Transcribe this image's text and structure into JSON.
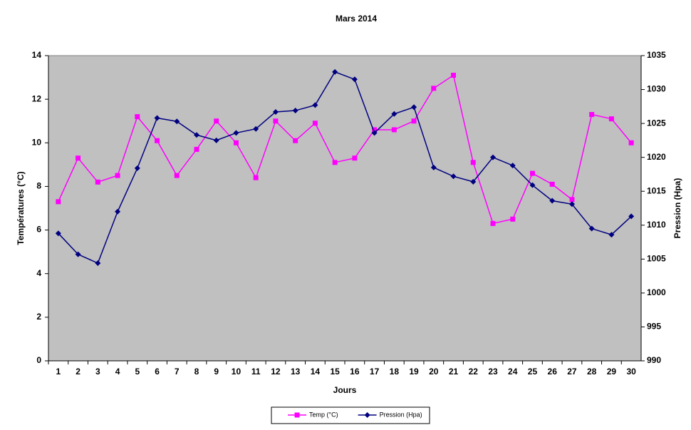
{
  "chart_data": {
    "type": "line",
    "title": "Mars 2014",
    "x_label": "Jours",
    "y_label": "Températures (°C)",
    "y2_label": "Pression (Hpa)",
    "categories": [
      "1",
      "2",
      "3",
      "4",
      "5",
      "6",
      "7",
      "8",
      "9",
      "10",
      "11",
      "12",
      "13",
      "14",
      "15",
      "16",
      "17",
      "18",
      "19",
      "20",
      "21",
      "22",
      "23",
      "24",
      "25",
      "26",
      "27",
      "28",
      "29",
      "30"
    ],
    "series": [
      {
        "name": "Temp (°C)",
        "color": "#ff00ff",
        "marker": "square",
        "values": [
          7.3,
          9.3,
          8.2,
          8.5,
          11.2,
          10.1,
          8.5,
          9.7,
          11.0,
          10.0,
          8.4,
          11.0,
          10.1,
          10.9,
          9.1,
          9.3,
          10.6,
          10.6,
          11.0,
          12.5,
          13.1,
          9.1,
          6.3,
          6.5,
          8.6,
          8.1,
          7.4,
          11.3,
          11.1,
          10.0
        ]
      },
      {
        "name": "Pression (Hpa)",
        "color": "#000080",
        "marker": "diamond",
        "axis": "y2",
        "values": [
          1008.8,
          1005.7,
          1004.4,
          1012.0,
          1018.4,
          1025.8,
          1025.3,
          1023.3,
          1022.5,
          1023.6,
          1024.2,
          1026.7,
          1026.9,
          1027.7,
          1032.6,
          1031.5,
          1023.6,
          1026.4,
          1027.4,
          1018.5,
          1017.2,
          1016.4,
          1020.0,
          1018.8,
          1015.9,
          1013.6,
          1013.1,
          1009.5,
          1008.6,
          1011.3
        ]
      }
    ],
    "ylim": [
      0,
      14
    ],
    "yticks": [
      0,
      2,
      4,
      6,
      8,
      10,
      12,
      14
    ],
    "y2lim": [
      990,
      1035
    ],
    "y2ticks": [
      990,
      995,
      1000,
      1005,
      1010,
      1015,
      1020,
      1025,
      1030,
      1035
    ],
    "plot_background": "#c0c0c0",
    "grid": false,
    "legend_position": "bottom"
  }
}
